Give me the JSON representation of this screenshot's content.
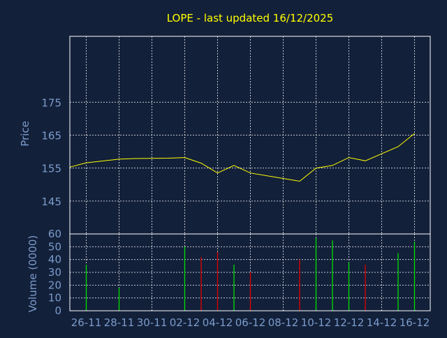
{
  "title": "LOPE - last updated 16/12/2025",
  "colors": {
    "background": "#13203a",
    "title": "#ffff00",
    "axis_text": "#7b9ccb",
    "frame": "#ffffff",
    "grid": "#ffffff",
    "price_line": "#ffff00",
    "volume_up": "#00e000",
    "volume_down": "#e00000"
  },
  "chart_data": [
    {
      "type": "line",
      "name": "price-panel",
      "ylabel": "Price",
      "ylim": [
        135,
        195
      ],
      "yticks": [
        145,
        155,
        165,
        175
      ],
      "grid": true,
      "x_ticks": [
        "26-11",
        "28-11",
        "30-11",
        "02-12",
        "04-12",
        "06-12",
        "08-12",
        "10-12",
        "12-12",
        "14-12",
        "16-12"
      ],
      "series": [
        {
          "values": [
            {
              "x": "25-11",
              "y": 155.3
            },
            {
              "x": "26-11",
              "y": 156.6
            },
            {
              "x": "28-11",
              "y": 157.7
            },
            {
              "x": "29-11",
              "y": 157.9
            },
            {
              "x": "01-12",
              "y": 158.0
            },
            {
              "x": "02-12",
              "y": 158.2
            },
            {
              "x": "03-12",
              "y": 156.5
            },
            {
              "x": "04-12",
              "y": 153.5
            },
            {
              "x": "05-12",
              "y": 155.8
            },
            {
              "x": "06-12",
              "y": 153.5
            },
            {
              "x": "09-12",
              "y": 151.0
            },
            {
              "x": "10-12",
              "y": 155.0
            },
            {
              "x": "11-12",
              "y": 155.8
            },
            {
              "x": "12-12",
              "y": 158.2
            },
            {
              "x": "13-12",
              "y": 157.2
            },
            {
              "x": "15-12",
              "y": 161.5
            },
            {
              "x": "16-12",
              "y": 165.5
            }
          ]
        }
      ]
    },
    {
      "type": "bar",
      "name": "volume-panel",
      "ylabel": "Volume (0000)",
      "ylim": [
        0,
        60
      ],
      "yticks": [
        0,
        10,
        20,
        30,
        40,
        50,
        60
      ],
      "grid": true,
      "x_ticks": [
        "26-11",
        "28-11",
        "30-11",
        "02-12",
        "04-12",
        "06-12",
        "08-12",
        "10-12",
        "12-12",
        "14-12",
        "16-12"
      ],
      "bars": [
        {
          "x": "26-11",
          "value": 36,
          "direction": "up"
        },
        {
          "x": "28-11",
          "value": 18,
          "direction": "up"
        },
        {
          "x": "02-12",
          "value": 50,
          "direction": "up"
        },
        {
          "x": "03-12",
          "value": 42,
          "direction": "down"
        },
        {
          "x": "04-12",
          "value": 46,
          "direction": "down"
        },
        {
          "x": "05-12",
          "value": 36,
          "direction": "up"
        },
        {
          "x": "06-12",
          "value": 30,
          "direction": "down"
        },
        {
          "x": "09-12",
          "value": 40,
          "direction": "down"
        },
        {
          "x": "10-12",
          "value": 57,
          "direction": "up"
        },
        {
          "x": "11-12",
          "value": 55,
          "direction": "up"
        },
        {
          "x": "12-12",
          "value": 38,
          "direction": "up"
        },
        {
          "x": "13-12",
          "value": 36,
          "direction": "down"
        },
        {
          "x": "15-12",
          "value": 45,
          "direction": "up"
        },
        {
          "x": "16-12",
          "value": 54,
          "direction": "up"
        }
      ]
    }
  ]
}
